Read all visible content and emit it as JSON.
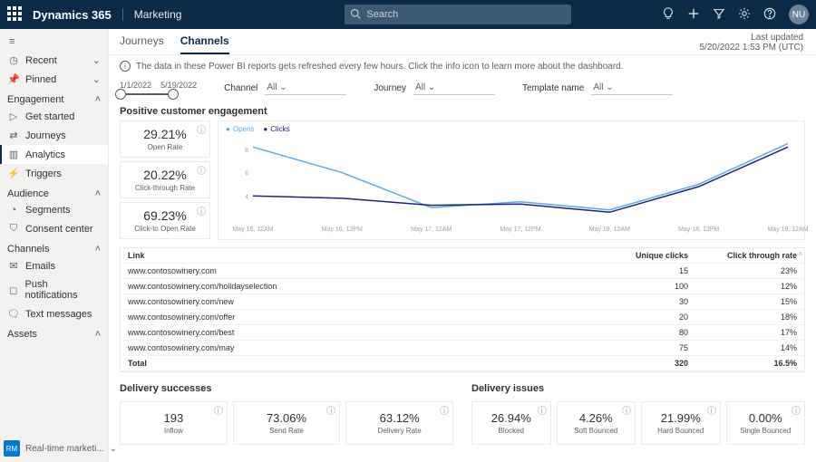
{
  "topbar": {
    "brand": "Dynamics 365",
    "module": "Marketing",
    "search_placeholder": "Search",
    "avatar_initials": "NU"
  },
  "last_updated": {
    "label": "Last updated",
    "value": "5/20/2022 1:53 PM (UTC)"
  },
  "tabs": [
    "Journeys",
    "Channels"
  ],
  "active_tab": "Channels",
  "info_text": "The data in these Power BI reports gets refreshed every few hours. Click the info icon to learn more about the dashboard.",
  "date_range": {
    "start": "1/1/2022",
    "end": "5/19/2022"
  },
  "filters": {
    "channel": {
      "label": "Channel",
      "value": "All"
    },
    "journey": {
      "label": "Journey",
      "value": "All"
    },
    "template": {
      "label": "Template name",
      "value": "All"
    }
  },
  "sidebar": {
    "top": [
      {
        "icon": "clock",
        "label": "Recent",
        "chev": true
      },
      {
        "icon": "pin",
        "label": "Pinned",
        "chev": true
      }
    ],
    "sections": [
      {
        "title": "Engagement",
        "items": [
          {
            "icon": "play",
            "label": "Get started"
          },
          {
            "icon": "route",
            "label": "Journeys"
          },
          {
            "icon": "chart",
            "label": "Analytics",
            "active": true
          },
          {
            "icon": "bolt",
            "label": "Triggers"
          }
        ]
      },
      {
        "title": "Audience",
        "items": [
          {
            "icon": "seg",
            "label": "Segments"
          },
          {
            "icon": "shield",
            "label": "Consent center"
          }
        ]
      },
      {
        "title": "Channels",
        "items": [
          {
            "icon": "mail",
            "label": "Emails"
          },
          {
            "icon": "bell",
            "label": "Push notifications"
          },
          {
            "icon": "msg",
            "label": "Text messages"
          }
        ]
      },
      {
        "title": "Assets",
        "items": []
      }
    ],
    "footer": {
      "badge": "RM",
      "label": "Real-time marketi..."
    }
  },
  "engagement": {
    "title": "Positive customer engagement",
    "kpis": [
      {
        "value": "29.21%",
        "label": "Open Rate"
      },
      {
        "value": "20.22%",
        "label": "Click-through Rate"
      },
      {
        "value": "69.23%",
        "label": "Click-to Open Rate"
      }
    ],
    "chart": {
      "type": "line",
      "series": [
        {
          "name": "Opens",
          "color": "#5aa9e6",
          "values": [
            8.2,
            6.0,
            3.0,
            3.5,
            2.8,
            5.0,
            8.5
          ]
        },
        {
          "name": "Clicks",
          "color": "#1a237e",
          "values": [
            4.0,
            3.8,
            3.2,
            3.3,
            2.6,
            4.8,
            8.2
          ]
        }
      ],
      "x_labels": [
        "May 16, 12AM",
        "May 16, 12PM",
        "May 17, 12AM",
        "May 17, 12PM",
        "May 18, 12AM",
        "May 18, 12PM",
        "May 19, 12AM"
      ],
      "y_ticks": [
        4,
        6,
        8
      ],
      "ylim": [
        2,
        9
      ],
      "background_color": "#ffffff",
      "grid": false
    }
  },
  "links_table": {
    "columns": [
      "Link",
      "Unique clicks",
      "Click through rate"
    ],
    "rows": [
      [
        "www.contosowinery.com",
        "15",
        "23%"
      ],
      [
        "www.contosowinery.com/holidayselection",
        "100",
        "12%"
      ],
      [
        "www.contosowinery.com/new",
        "30",
        "15%"
      ],
      [
        "www.contosowinery.com/offer",
        "20",
        "18%"
      ],
      [
        "www.contosowinery.com/best",
        "80",
        "17%"
      ],
      [
        "www.contosowinery.com/may",
        "75",
        "14%"
      ]
    ],
    "total": [
      "Total",
      "320",
      "16.5%"
    ]
  },
  "delivery_successes": {
    "title": "Delivery successes",
    "cards": [
      {
        "value": "193",
        "label": "Inflow"
      },
      {
        "value": "73.06%",
        "label": "Send Rate"
      },
      {
        "value": "63.12%",
        "label": "Delivery Rate"
      }
    ]
  },
  "delivery_issues": {
    "title": "Delivery issues",
    "cards": [
      {
        "value": "26.94%",
        "label": "Blocked"
      },
      {
        "value": "4.26%",
        "label": "Soft Bounced"
      },
      {
        "value": "21.99%",
        "label": "Hard Bounced"
      },
      {
        "value": "0.00%",
        "label": "Single Bounced"
      }
    ]
  }
}
